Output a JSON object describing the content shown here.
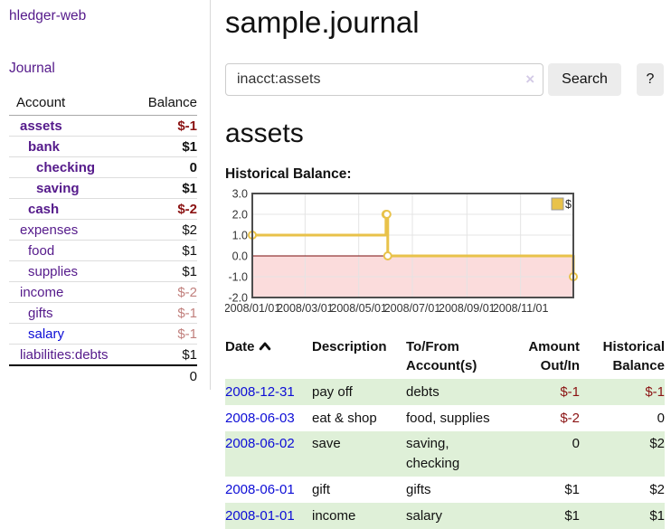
{
  "app": {
    "brand": "hledger-web"
  },
  "colors": {
    "purple_link": "#551a8b",
    "blue_link": "#0d0dd6",
    "negative_strong": "#8b1313",
    "negative_soft": "#c1807d",
    "row_highlight_green": "#dff0d8"
  },
  "sidebar": {
    "journal_label": "Journal",
    "accounts": {
      "header_account": "Account",
      "header_balance": "Balance",
      "rows": [
        {
          "account": "assets",
          "indent": 0,
          "bold": true,
          "balance": "$-1"
        },
        {
          "account": "bank",
          "indent": 1,
          "bold": true,
          "balance": "$1"
        },
        {
          "account": "checking",
          "indent": 2,
          "bold": true,
          "balance": "0"
        },
        {
          "account": "saving",
          "indent": 2,
          "bold": true,
          "balance": "$1"
        },
        {
          "account": "cash",
          "indent": 1,
          "bold": true,
          "balance": "$-2"
        },
        {
          "account": "expenses",
          "indent": 0,
          "bold": false,
          "balance": "$2"
        },
        {
          "account": "food",
          "indent": 1,
          "bold": false,
          "balance": "$1"
        },
        {
          "account": "supplies",
          "indent": 1,
          "bold": false,
          "balance": "$1"
        },
        {
          "account": "income",
          "indent": 0,
          "bold": false,
          "balance": "$-2"
        },
        {
          "account": "gifts",
          "indent": 1,
          "bold": false,
          "balance": "$-1"
        },
        {
          "account": "salary",
          "indent": 1,
          "bold": false,
          "balance": "$-1",
          "blue_link": true
        },
        {
          "account": "liabilities:debts",
          "indent": 0,
          "bold": false,
          "balance": "$1"
        }
      ],
      "total": "0"
    }
  },
  "main": {
    "title": "sample.journal",
    "search": {
      "value": "inacct:assets",
      "clear_icon": "×",
      "button_label": "Search",
      "help_label": "?"
    },
    "account_heading": "assets",
    "chart_heading": "Historical Balance:"
  },
  "chart_data": {
    "type": "line",
    "step": true,
    "title": "Historical Balance",
    "legend": [
      {
        "label": "$",
        "position": "top-right"
      }
    ],
    "grid": true,
    "xlim": [
      "2008-01-01",
      "2008-12-31"
    ],
    "ylim": [
      -2,
      3
    ],
    "yticks": [
      "3.0",
      "2.0",
      "1.0",
      "0.0",
      "-1.0",
      "-2.0"
    ],
    "xticks": [
      "2008/01/01",
      "2008/03/01",
      "2008/05/01",
      "2008/07/01",
      "2008/09/01",
      "2008/11/01"
    ],
    "series": [
      {
        "name": "$",
        "points": [
          {
            "x": "2008-01-01",
            "y": 1
          },
          {
            "x": "2008-06-01",
            "y": 2
          },
          {
            "x": "2008-06-02",
            "y": 2
          },
          {
            "x": "2008-06-03",
            "y": 0
          },
          {
            "x": "2008-12-31",
            "y": -1
          }
        ]
      }
    ],
    "colors": {
      "line": "#e8c24a",
      "marker_fill": "#ffffff",
      "negative_region": "#fbdcdc",
      "zero_line": "#7a0b0b",
      "plot_border": "#4d4d4d",
      "gridline": "#e4e4e4",
      "legend_border": "#999999"
    }
  },
  "register": {
    "headers": {
      "date": "Date",
      "description": "Description",
      "accounts": "To/From Account(s)",
      "amount": "Amount Out/In",
      "balance": "Historical Balance"
    },
    "sort": {
      "column": "date",
      "direction": "ascending"
    },
    "rows": [
      {
        "date": "2008-12-31",
        "description": "pay off",
        "accounts": "debts",
        "amount": "$-1",
        "balance": "$-1"
      },
      {
        "date": "2008-06-03",
        "description": "eat & shop",
        "accounts": "food, supplies",
        "amount": "$-2",
        "balance": "0"
      },
      {
        "date": "2008-06-02",
        "description": "save",
        "accounts": "saving, checking",
        "amount": "0",
        "balance": "$2"
      },
      {
        "date": "2008-06-01",
        "description": "gift",
        "accounts": "gifts",
        "amount": "$1",
        "balance": "$2"
      },
      {
        "date": "2008-01-01",
        "description": "income",
        "accounts": "salary",
        "amount": "$1",
        "balance": "$1"
      }
    ]
  }
}
